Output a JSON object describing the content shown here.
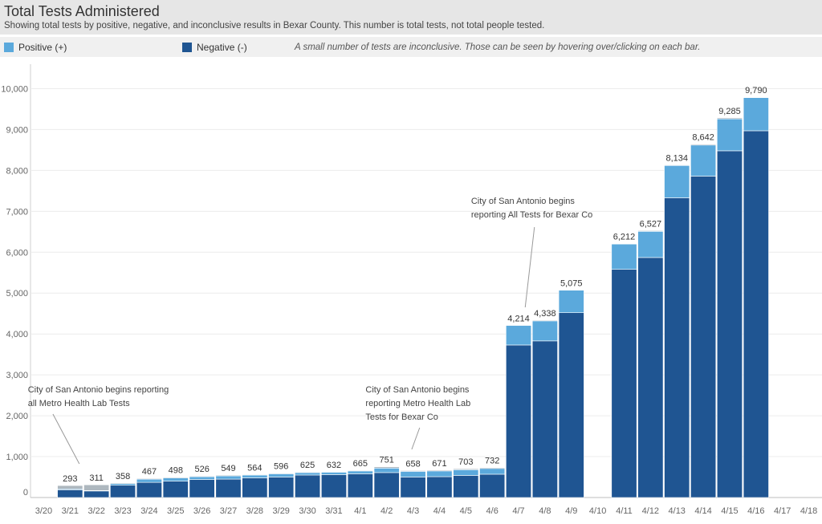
{
  "header": {
    "title": "Total Tests Administered",
    "subtitle": "Showing total tests by positive, negative, and inconclusive results in Bexar County. This number is total tests, not total people tested."
  },
  "legend": {
    "positive_label": "Positive (+)",
    "negative_label": "Negative (-)",
    "note": "A small number of tests are inconclusive. Those can be seen by hovering over/clicking on each bar."
  },
  "colors": {
    "positive": "#5ba9dc",
    "negative": "#1f5592",
    "inconclusive": "#aeb8bf"
  },
  "chart_data": {
    "type": "bar",
    "stacked": true,
    "categories": [
      "3/20",
      "3/21",
      "3/22",
      "3/23",
      "3/24",
      "3/25",
      "3/26",
      "3/27",
      "3/28",
      "3/29",
      "3/30",
      "3/31",
      "4/1",
      "4/2",
      "4/3",
      "4/4",
      "4/5",
      "4/6",
      "4/7",
      "4/8",
      "4/9",
      "4/10",
      "4/11",
      "4/12",
      "4/13",
      "4/14",
      "4/15",
      "4/16",
      "4/17",
      "4/18"
    ],
    "series": [
      {
        "name": "Negative (-)",
        "values": [
          null,
          190,
          160,
          300,
          370,
          400,
          440,
          450,
          480,
          500,
          550,
          560,
          580,
          610,
          500,
          510,
          540,
          570,
          3730,
          3830,
          4520,
          null,
          5580,
          5870,
          7330,
          7860,
          8480,
          8970,
          null,
          null
        ]
      },
      {
        "name": "Positive (+)",
        "values": [
          null,
          20,
          10,
          40,
          80,
          80,
          70,
          80,
          70,
          80,
          60,
          60,
          70,
          110,
          140,
          140,
          140,
          140,
          480,
          490,
          550,
          null,
          620,
          640,
          790,
          760,
          780,
          810,
          null,
          null
        ]
      },
      {
        "name": "Inconclusive",
        "values": [
          null,
          83,
          141,
          18,
          17,
          18,
          16,
          19,
          14,
          16,
          15,
          12,
          15,
          31,
          18,
          21,
          23,
          22,
          4,
          18,
          5,
          null,
          12,
          17,
          14,
          22,
          25,
          10,
          null,
          null
        ]
      }
    ],
    "totals": [
      null,
      293,
      311,
      358,
      467,
      498,
      526,
      549,
      564,
      596,
      625,
      632,
      665,
      751,
      658,
      671,
      703,
      732,
      4214,
      4338,
      5075,
      null,
      6212,
      6527,
      8134,
      8642,
      9285,
      9790,
      null,
      null
    ],
    "ylim": [
      0,
      10500
    ],
    "yticks": [
      0,
      1000,
      2000,
      3000,
      4000,
      5000,
      6000,
      7000,
      8000,
      9000,
      10000
    ],
    "ytick_labels": [
      "0",
      "1,000",
      "2,000",
      "3,000",
      "4,000",
      "5,000",
      "6,000",
      "7,000",
      "8,000",
      "9,000",
      "10,000"
    ],
    "grid": true,
    "annotations": [
      {
        "lines": [
          "City of San Antonio begins reporting",
          "all Metro Health Lab Tests"
        ],
        "category": "3/21"
      },
      {
        "lines": [
          "City of San Antonio begins",
          "reporting Metro Health Lab",
          "Tests for Bexar Co"
        ],
        "category": "4/3"
      },
      {
        "lines": [
          "City of San Antonio begins",
          "reporting All Tests for Bexar Co"
        ],
        "category": "4/7"
      }
    ]
  }
}
